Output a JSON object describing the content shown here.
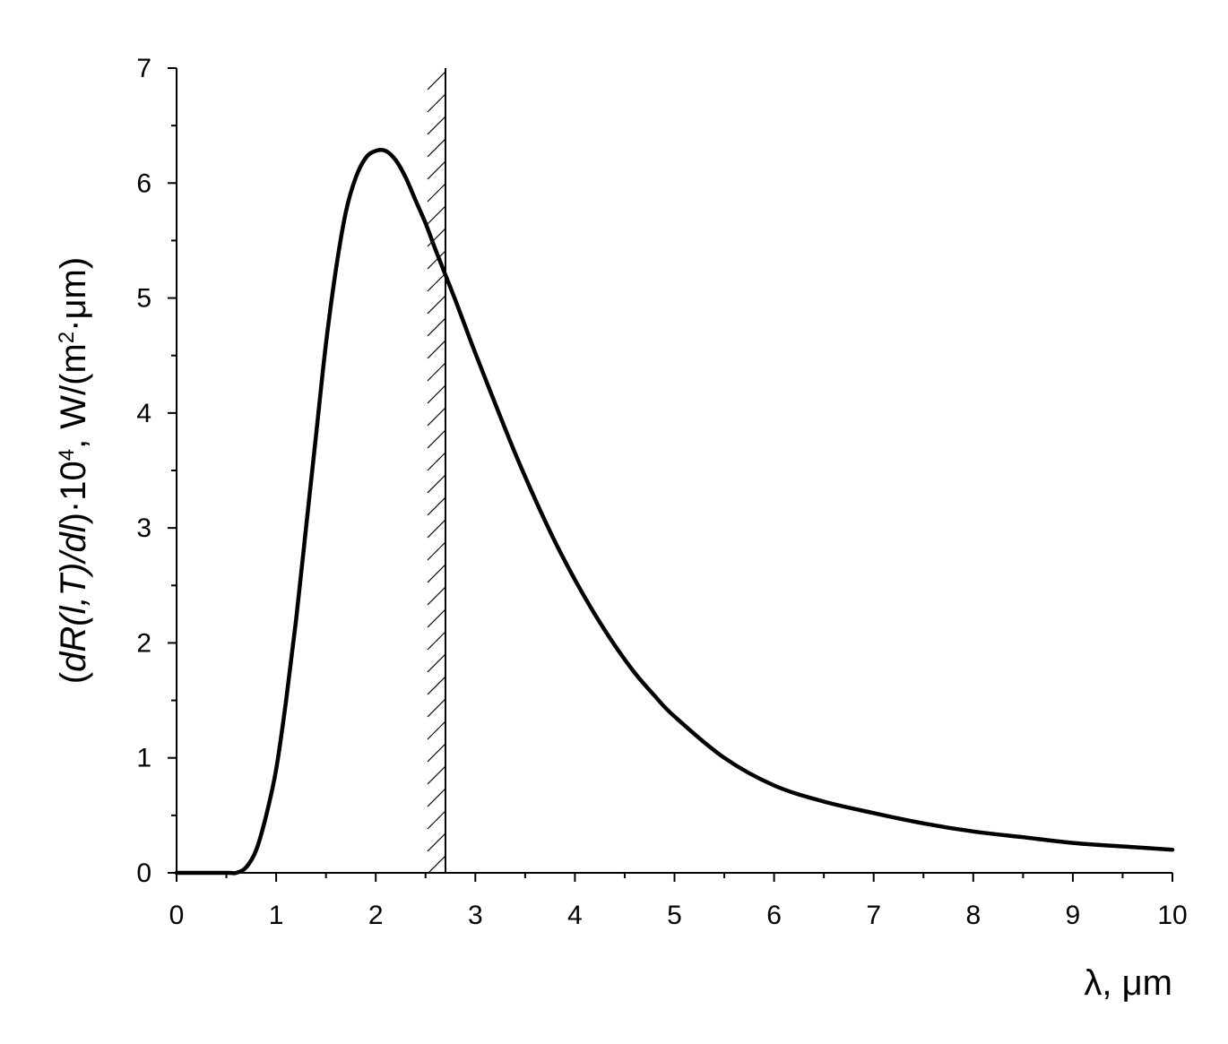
{
  "chart_data": {
    "type": "line",
    "title": "",
    "xlabel": "λ, μm",
    "ylabel": {
      "part1": "(",
      "part2": "dR(l,T)/dl",
      "part3": ")·10",
      "exp1": "4",
      "part4": ", W/(m",
      "exp2": "2",
      "part5": "·μm)"
    },
    "xlim": [
      0,
      10
    ],
    "ylim": [
      0,
      7
    ],
    "x_ticks": [
      "0",
      "1",
      "2",
      "3",
      "4",
      "5",
      "6",
      "7",
      "8",
      "9",
      "10"
    ],
    "y_ticks": [
      "0",
      "1",
      "2",
      "3",
      "4",
      "5",
      "6",
      "7"
    ],
    "grid": false,
    "legend": "none",
    "cutoff_wavelength": 2.7,
    "series": [
      {
        "color": "#000000",
        "x": [
          0.0,
          0.5,
          0.6,
          0.7,
          0.8,
          0.9,
          1.0,
          1.1,
          1.2,
          1.3,
          1.4,
          1.5,
          1.6,
          1.7,
          1.8,
          1.9,
          2.0,
          2.1,
          2.2,
          2.3,
          2.4,
          2.5,
          2.6,
          2.7,
          2.8,
          2.9,
          3.0,
          3.2,
          3.4,
          3.6,
          3.8,
          4.0,
          4.2,
          4.4,
          4.6,
          4.8,
          5.0,
          5.5,
          6.0,
          6.5,
          7.0,
          7.5,
          8.0,
          8.5,
          9.0,
          9.5,
          10.0
        ],
        "y": [
          0.0,
          0.0,
          0.0,
          0.05,
          0.2,
          0.5,
          0.9,
          1.5,
          2.2,
          3.0,
          3.8,
          4.6,
          5.25,
          5.75,
          6.05,
          6.22,
          6.28,
          6.28,
          6.2,
          6.05,
          5.85,
          5.65,
          5.42,
          5.2,
          4.98,
          4.75,
          4.52,
          4.08,
          3.65,
          3.25,
          2.88,
          2.55,
          2.25,
          1.98,
          1.74,
          1.54,
          1.36,
          1.0,
          0.76,
          0.62,
          0.52,
          0.43,
          0.36,
          0.31,
          0.26,
          0.23,
          0.2
        ]
      }
    ]
  }
}
